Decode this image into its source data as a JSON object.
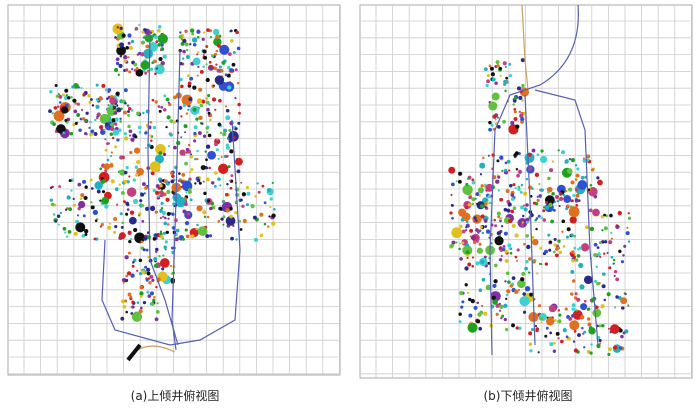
{
  "figures": [
    {
      "caption": "(a)上倾井俯视图"
    },
    {
      "caption": "(b)下倾井俯视图"
    }
  ]
}
